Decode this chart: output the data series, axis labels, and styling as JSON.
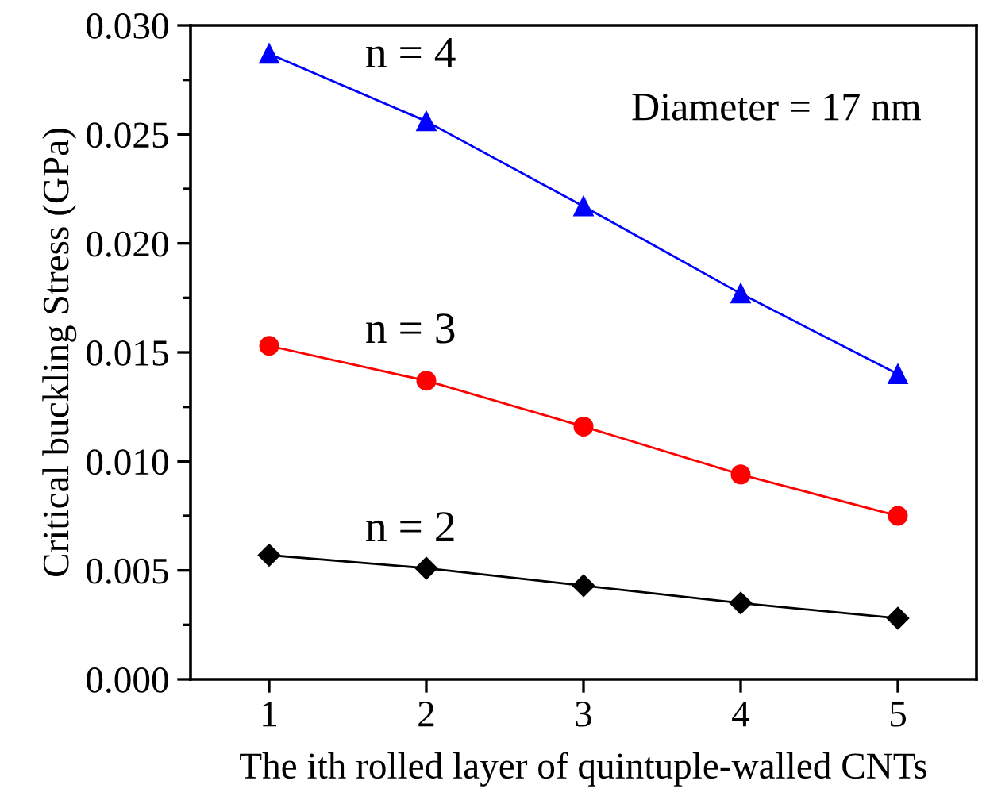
{
  "chart_data": {
    "type": "line",
    "xlabel": "The ith rolled layer of quintuple-walled CNTs",
    "ylabel": "Critical buckling Stress (GPa)",
    "x": [
      1,
      2,
      3,
      4,
      5
    ],
    "series": [
      {
        "name": "n = 4",
        "color": "#0000ff",
        "marker": "triangle",
        "values": [
          0.0287,
          0.0256,
          0.0217,
          0.0177,
          0.014
        ]
      },
      {
        "name": "n = 3",
        "color": "#ff0000",
        "marker": "circle",
        "values": [
          0.0153,
          0.0137,
          0.0116,
          0.0094,
          0.0075
        ]
      },
      {
        "name": "n = 2",
        "color": "#000000",
        "marker": "diamond",
        "values": [
          0.0057,
          0.0051,
          0.0043,
          0.0035,
          0.0028
        ]
      }
    ],
    "annotations": [
      "Diameter = 17 nm"
    ],
    "xlim": [
      0.5,
      5.5
    ],
    "ylim": [
      0.0,
      0.03
    ],
    "xticks": [
      1,
      2,
      3,
      4,
      5
    ],
    "yticks": [
      {
        "value": 0.0,
        "label": "0.000"
      },
      {
        "value": 0.005,
        "label": "0.005"
      },
      {
        "value": 0.01,
        "label": "0.010"
      },
      {
        "value": 0.015,
        "label": "0.015"
      },
      {
        "value": 0.02,
        "label": "0.020"
      },
      {
        "value": 0.025,
        "label": "0.025"
      },
      {
        "value": 0.03,
        "label": "0.030"
      }
    ],
    "grid": false,
    "legend": false,
    "line_style": "solid"
  }
}
